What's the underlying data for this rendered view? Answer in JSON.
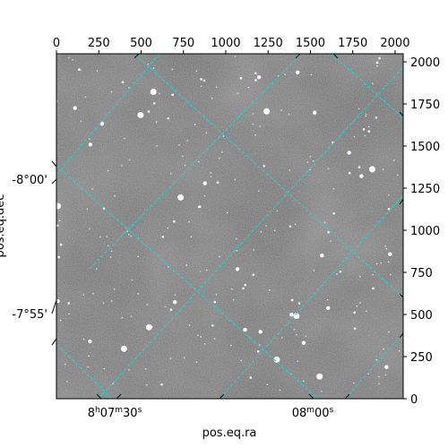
{
  "chart_data": {
    "type": "image",
    "xlabel": "pos.eq.ra",
    "ylabel": "pos.eq.dec",
    "pixel_axis": {
      "xlim": [
        0,
        2048
      ],
      "ylim": [
        0,
        2048
      ],
      "x_ticks": [
        0,
        250,
        500,
        750,
        1000,
        1250,
        1500,
        1750,
        2000
      ],
      "y_ticks": [
        0,
        250,
        500,
        750,
        1000,
        1250,
        1500,
        1750,
        2000
      ]
    },
    "ra_ticks": [
      {
        "label_main": "8",
        "label_unit1": "h",
        "label_mid": "07",
        "label_unit2": "m",
        "label_sec": "30",
        "label_unit3": "s",
        "text": "8h07m30s"
      },
      {
        "label_main": "",
        "label_unit1": "",
        "label_mid": "08",
        "label_unit2": "m",
        "label_sec": "00",
        "label_unit3": "s",
        "text": "08m00s"
      }
    ],
    "dec_ticks": [
      "-8°00'",
      "-7°55'"
    ],
    "grid": true,
    "grid_color": "#22d3d3",
    "background": "grayscale star field"
  }
}
